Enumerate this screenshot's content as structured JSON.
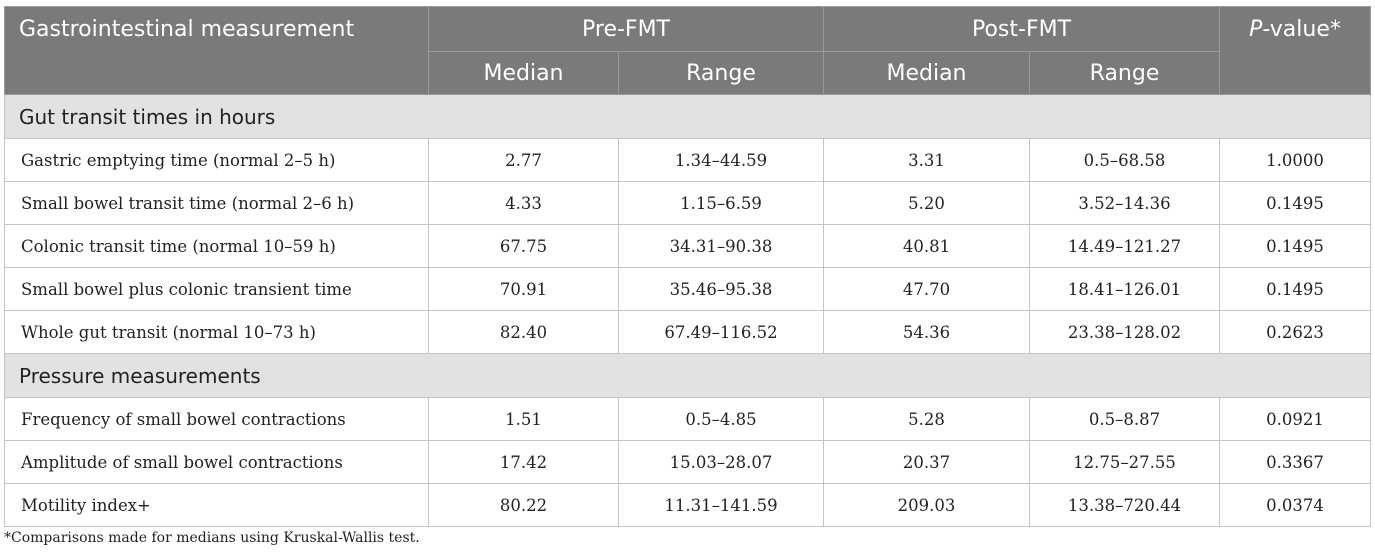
{
  "header": {
    "measurement": "Gastrointestinal measurement",
    "pre": "Pre-FMT",
    "post": "Post-FMT",
    "p_italic": "P",
    "p_rest": "-value*",
    "median": "Median",
    "range": "Range"
  },
  "sections": [
    {
      "title": "Gut transit times in hours",
      "rows": [
        [
          "Gastric emptying time (normal 2–5 h)",
          "2.77",
          "1.34–44.59",
          "3.31",
          "0.5–68.58",
          "1.0000"
        ],
        [
          "Small bowel transit time (normal 2–6 h)",
          "4.33",
          "1.15–6.59",
          "5.20",
          "3.52–14.36",
          "0.1495"
        ],
        [
          "Colonic transit time (normal 10–59 h)",
          "67.75",
          "34.31–90.38",
          "40.81",
          "14.49–121.27",
          "0.1495"
        ],
        [
          "Small bowel plus colonic transient time",
          "70.91",
          "35.46–95.38",
          "47.70",
          "18.41–126.01",
          "0.1495"
        ],
        [
          "Whole gut transit (normal 10–73 h)",
          "82.40",
          "67.49–116.52",
          "54.36",
          "23.38–128.02",
          "0.2623"
        ]
      ]
    },
    {
      "title": "Pressure measurements",
      "rows": [
        [
          "Frequency of small bowel contractions",
          "1.51",
          "0.5–4.85",
          "5.28",
          "0.5–8.87",
          "0.0921"
        ],
        [
          "Amplitude of small bowel contractions",
          "17.42",
          "15.03–28.07",
          "20.37",
          "12.75–27.55",
          "0.3367"
        ],
        [
          "Motility index+",
          "80.22",
          "11.31–141.59",
          "209.03",
          "13.38–720.44",
          "0.0374"
        ]
      ]
    }
  ],
  "footnote": "*Comparisons made for medians using Kruskal-Wallis test."
}
